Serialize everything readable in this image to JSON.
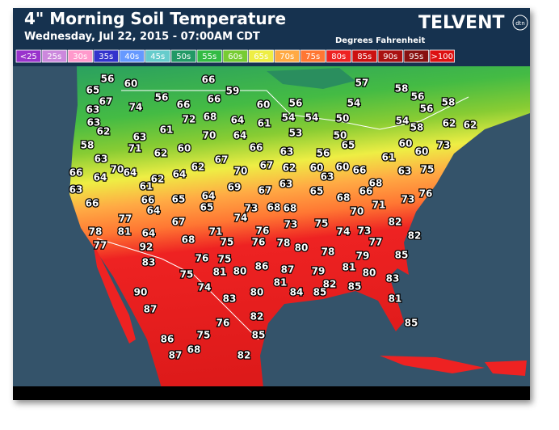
{
  "header": {
    "title": "4\" Morning Soil Temperature",
    "subtitle": "Wednesday, Jul 22, 2015 - 07:00AM CDT",
    "logo": "TELVENT",
    "logo_badge": "dtn",
    "units": "Degrees Fahrenheit"
  },
  "legend": {
    "items": [
      {
        "label": "<25",
        "color": "#9933cc"
      },
      {
        "label": "25s",
        "color": "#cc88dd"
      },
      {
        "label": "30s",
        "color": "#ff99cc"
      },
      {
        "label": "35s",
        "color": "#3333cc"
      },
      {
        "label": "40s",
        "color": "#6699ff"
      },
      {
        "label": "45s",
        "color": "#66cccc"
      },
      {
        "label": "50s",
        "color": "#229966"
      },
      {
        "label": "55s",
        "color": "#33bb44"
      },
      {
        "label": "60s",
        "color": "#77cc33"
      },
      {
        "label": "65s",
        "color": "#eeee44"
      },
      {
        "label": "70s",
        "color": "#ffaa44"
      },
      {
        "label": "75s",
        "color": "#ff7733"
      },
      {
        "label": "80s",
        "color": "#ee2222"
      },
      {
        "label": "85s",
        "color": "#cc1111"
      },
      {
        "label": "90s",
        "color": "#aa1111"
      },
      {
        "label": "95s",
        "color": "#881111"
      },
      {
        "label": ">100",
        "color": "#dd1111"
      }
    ]
  },
  "map": {
    "readings": [
      56,
      60,
      65,
      66,
      59,
      57,
      58,
      56,
      67,
      74,
      56,
      66,
      66,
      54,
      58,
      63,
      60,
      56,
      56,
      63,
      62,
      61,
      72,
      68,
      64,
      61,
      54,
      54,
      50,
      54,
      58,
      62,
      62,
      63,
      70,
      64,
      53,
      50,
      65,
      60,
      60,
      73,
      58,
      71,
      62,
      60,
      63,
      56,
      61,
      63,
      62,
      67,
      66,
      66,
      64,
      70,
      64,
      62,
      64,
      70,
      67,
      62,
      60,
      60,
      66,
      63,
      63,
      75,
      63,
      61,
      68,
      69,
      67,
      63,
      65,
      64,
      65,
      66,
      66,
      65,
      68,
      68,
      66,
      74,
      73,
      68,
      73,
      76,
      77,
      64,
      67,
      73,
      75,
      70,
      71,
      82,
      78,
      81,
      64,
      71,
      76,
      74,
      73,
      82,
      92,
      68,
      75,
      76,
      78,
      80,
      78,
      77,
      77,
      85,
      79,
      83,
      76,
      75,
      86,
      87,
      80,
      81,
      79,
      81,
      75,
      80,
      83,
      81,
      82,
      85,
      84,
      85,
      74,
      80,
      83,
      90,
      87,
      81,
      82,
      76,
      85,
      85,
      75,
      86,
      87,
      68,
      82
    ]
  }
}
